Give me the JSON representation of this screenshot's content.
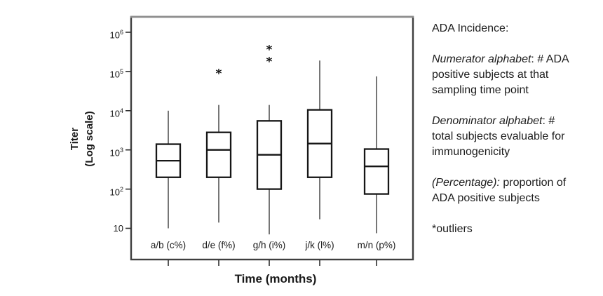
{
  "chart_data": {
    "type": "boxplot",
    "title": "",
    "xlabel": "Time (months)",
    "ylabel_lines": [
      "Titer",
      "(Log scale)"
    ],
    "y_scale": "log10",
    "ylim": [
      1.6,
      2400000
    ],
    "grid": false,
    "outlier_marker": "*",
    "y_ticks": [
      {
        "base": "10",
        "exp": "6",
        "value": 1000000
      },
      {
        "base": "10",
        "exp": "5",
        "value": 100000
      },
      {
        "base": "10",
        "exp": "4",
        "value": 10000
      },
      {
        "base": "10",
        "exp": "3",
        "value": 1000
      },
      {
        "base": "10",
        "exp": "2",
        "value": 100
      },
      {
        "base": "10",
        "exp": "",
        "value": 10
      }
    ],
    "categories": [
      "a/b (c%)",
      "d/e (f%)",
      "g/h (i%)",
      "j/k (l%)",
      "m/n (p%)"
    ],
    "series": [
      {
        "label": "a/b (c%)",
        "whisker_low": 10,
        "q1": 200,
        "median": 530,
        "q3": 1400,
        "whisker_high": 10000,
        "outliers": []
      },
      {
        "label": "d/e (f%)",
        "whisker_low": 14,
        "q1": 200,
        "median": 1000,
        "q3": 2800,
        "whisker_high": 14000,
        "outliers": [
          100000
        ]
      },
      {
        "label": "g/h (i%)",
        "whisker_low": 7,
        "q1": 100,
        "median": 750,
        "q3": 5500,
        "whisker_high": 14000,
        "outliers": [
          200000,
          400000
        ]
      },
      {
        "label": "j/k (l%)",
        "whisker_low": 17,
        "q1": 200,
        "median": 1450,
        "q3": 10500,
        "whisker_high": 190000,
        "outliers": []
      },
      {
        "label": "m/n (p%)",
        "whisker_low": 7.5,
        "q1": 75,
        "median": 380,
        "q3": 1050,
        "whisker_high": 75000,
        "outliers": []
      }
    ]
  },
  "annotation": {
    "title": "ADA Incidence:",
    "items": [
      {
        "lead": "Numerator alphabet",
        "body": ": # ADA positive  subjects at that sampling time point"
      },
      {
        "lead": "Denominator alphabet",
        "body": ": # total subjects evaluable for immunogenicity"
      },
      {
        "lead": "(Percentage):",
        "body": " proportion of ADA positive subjects"
      },
      {
        "lead": "",
        "body": "*outliers"
      }
    ]
  }
}
